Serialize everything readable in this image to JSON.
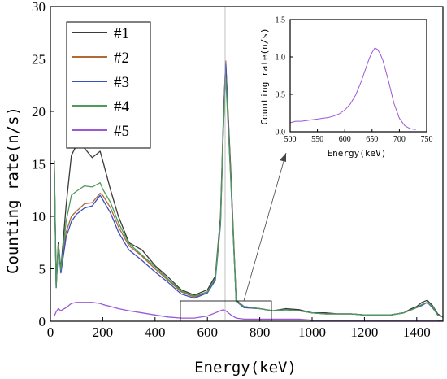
{
  "chart_data": [
    {
      "type": "line",
      "xlabel": "Energy(keV)",
      "ylabel": "Counting rate(n/s)",
      "xlim": [
        0,
        1500
      ],
      "ylim": [
        0,
        30
      ],
      "xticks": [
        0,
        200,
        400,
        600,
        800,
        1000,
        1200,
        1400
      ],
      "yticks": [
        0,
        5,
        10,
        15,
        20,
        25,
        30
      ],
      "legend": "top-left",
      "x": [
        15,
        22,
        30,
        40,
        60,
        80,
        100,
        130,
        160,
        190,
        200,
        230,
        260,
        300,
        350,
        400,
        450,
        500,
        550,
        600,
        630,
        650,
        660,
        670,
        690,
        710,
        740,
        800,
        850,
        900,
        950,
        1000,
        1050,
        1100,
        1150,
        1200,
        1250,
        1300,
        1350,
        1380,
        1400,
        1420,
        1440,
        1460,
        1480,
        1500
      ],
      "series": [
        {
          "name": "#1",
          "color": "#3a3a3a",
          "values": [
            15.3,
            3.5,
            7.5,
            5.0,
            11.0,
            15.8,
            16.8,
            16.5,
            15.6,
            16.2,
            15.3,
            12.5,
            10.0,
            7.5,
            6.8,
            5.3,
            4.2,
            3.0,
            2.5,
            3.0,
            4.3,
            10.0,
            18.5,
            24.8,
            14.0,
            2.0,
            1.4,
            1.2,
            1.0,
            1.2,
            1.1,
            0.8,
            0.8,
            0.7,
            0.7,
            0.6,
            0.6,
            0.6,
            0.8,
            1.2,
            1.4,
            1.8,
            2.0,
            1.5,
            0.7,
            0.4
          ]
        },
        {
          "name": "#2",
          "color": "#b06a3a",
          "values": [
            15.0,
            3.3,
            7.2,
            4.8,
            8.5,
            10.0,
            10.5,
            11.2,
            11.3,
            12.2,
            12.0,
            10.8,
            9.0,
            7.2,
            6.2,
            5.0,
            3.9,
            2.8,
            2.3,
            2.8,
            4.0,
            9.5,
            18.0,
            24.8,
            13.5,
            1.9,
            1.3,
            1.2,
            1.0,
            1.1,
            1.0,
            0.8,
            0.7,
            0.7,
            0.7,
            0.6,
            0.6,
            0.6,
            0.8,
            1.1,
            1.3,
            1.6,
            1.8,
            1.4,
            0.6,
            0.4
          ]
        },
        {
          "name": "#3",
          "color": "#3a4fc0",
          "values": [
            14.8,
            3.2,
            7.0,
            4.6,
            8.0,
            9.5,
            10.2,
            10.8,
            11.0,
            12.0,
            11.6,
            10.3,
            8.5,
            6.8,
            5.8,
            4.7,
            3.7,
            2.6,
            2.2,
            2.7,
            3.9,
            9.2,
            17.5,
            24.5,
            13.0,
            1.9,
            1.3,
            1.2,
            1.0,
            1.1,
            1.0,
            0.8,
            0.7,
            0.7,
            0.7,
            0.6,
            0.6,
            0.6,
            0.8,
            1.1,
            1.3,
            1.5,
            1.8,
            1.3,
            0.6,
            0.4
          ]
        },
        {
          "name": "#4",
          "color": "#4f9a5a",
          "values": [
            15.0,
            3.3,
            7.3,
            4.9,
            9.5,
            12.0,
            12.4,
            12.9,
            12.8,
            13.2,
            12.6,
            11.3,
            9.4,
            7.4,
            6.3,
            5.2,
            4.0,
            2.9,
            2.4,
            2.8,
            4.1,
            9.4,
            17.8,
            23.2,
            13.2,
            1.9,
            1.4,
            1.2,
            1.0,
            1.1,
            1.0,
            0.8,
            0.7,
            0.7,
            0.7,
            0.6,
            0.6,
            0.6,
            0.8,
            1.1,
            1.3,
            1.6,
            1.8,
            1.4,
            0.6,
            0.4
          ]
        },
        {
          "name": "#5",
          "color": "#9b59d6",
          "values": [
            0.5,
            0.9,
            1.2,
            1.0,
            1.3,
            1.7,
            1.8,
            1.8,
            1.8,
            1.7,
            1.6,
            1.4,
            1.2,
            1.0,
            0.8,
            0.6,
            0.4,
            0.3,
            0.3,
            0.5,
            0.8,
            1.0,
            1.1,
            1.0,
            0.6,
            0.3,
            0.2,
            0.2,
            0.2,
            0.2,
            0.2,
            0.1,
            0.1,
            0.1,
            0.1,
            0.1,
            0.1,
            0.1,
            0.1,
            0.1,
            0.1,
            0.1,
            0.1,
            0.1,
            0.1,
            0.0
          ]
        }
      ]
    },
    {
      "type": "line",
      "xlabel": "Energy(keV)",
      "ylabel": "Counting rate(n/s)",
      "xlim": [
        500,
        750
      ],
      "ylim": [
        0,
        1.5
      ],
      "xticks": [
        500,
        550,
        600,
        650,
        700,
        750
      ],
      "yticks": [
        0.0,
        0.5,
        1.0,
        1.5
      ],
      "x": [
        500,
        510,
        520,
        530,
        540,
        550,
        560,
        570,
        580,
        590,
        600,
        610,
        620,
        630,
        640,
        645,
        650,
        655,
        660,
        665,
        670,
        680,
        690,
        700,
        710,
        720,
        730
      ],
      "series": [
        {
          "name": "#5",
          "color": "#9b59d6",
          "values": [
            0.12,
            0.14,
            0.14,
            0.15,
            0.16,
            0.17,
            0.18,
            0.19,
            0.21,
            0.24,
            0.29,
            0.37,
            0.49,
            0.67,
            0.88,
            0.98,
            1.06,
            1.12,
            1.1,
            1.04,
            0.95,
            0.68,
            0.38,
            0.18,
            0.08,
            0.04,
            0.03
          ]
        }
      ]
    }
  ]
}
